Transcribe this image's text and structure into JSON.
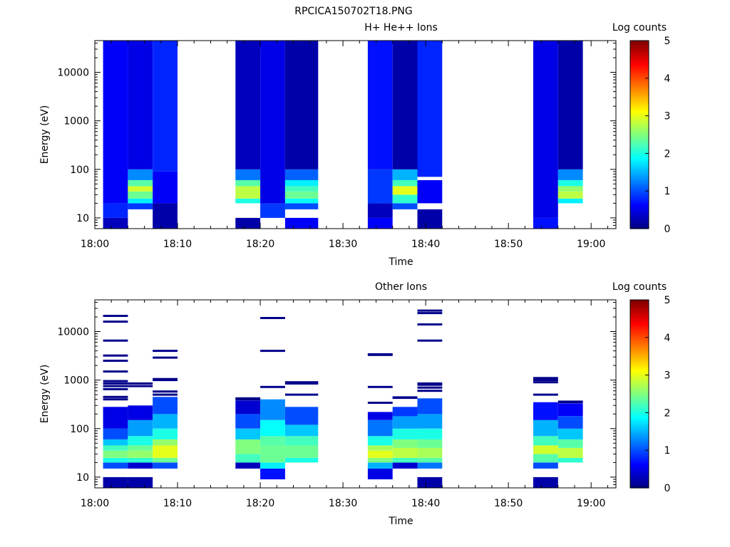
{
  "figure_title": "RPCICA150702T18.PNG",
  "chart_data": [
    {
      "type": "heatmap",
      "title": "H+ He++ Ions",
      "xlabel": "Time",
      "ylabel": "Energy (eV)",
      "xlim": [
        "18:00",
        "19:03"
      ],
      "ylim": [
        6,
        45000
      ],
      "yscale": "log",
      "x_ticks": [
        "18:00",
        "18:10",
        "18:20",
        "18:30",
        "18:40",
        "18:50",
        "19:00"
      ],
      "y_ticks": [
        "10",
        "100",
        "1000",
        "10000"
      ],
      "colorbar": {
        "label": "Log counts",
        "ticks": [
          "0",
          "1",
          "2",
          "3",
          "4",
          "5"
        ],
        "range": [
          0,
          5
        ]
      },
      "grid": false,
      "columns": [
        {
          "start": "18:01",
          "end": "18:04",
          "bands": [
            [
              6,
              10,
              0.3
            ],
            [
              10,
              20,
              0.8
            ],
            [
              20,
              45000,
              0.6
            ]
          ]
        },
        {
          "start": "18:04",
          "end": "18:07",
          "bands": [
            [
              15,
              20,
              0.9
            ],
            [
              20,
              25,
              1.8
            ],
            [
              25,
              35,
              2.4
            ],
            [
              35,
              45,
              2.9
            ],
            [
              45,
              60,
              2.3
            ],
            [
              60,
              100,
              1.3
            ],
            [
              100,
              45000,
              0.5
            ]
          ]
        },
        {
          "start": "18:07",
          "end": "18:10",
          "bands": [
            [
              6,
              20,
              0.2
            ],
            [
              20,
              90,
              0.6
            ],
            [
              90,
              45000,
              0.8
            ]
          ]
        },
        {
          "start": "18:17",
          "end": "18:20",
          "bands": [
            [
              6,
              10,
              0.2
            ],
            [
              20,
              25,
              2.0
            ],
            [
              25,
              45,
              2.8
            ],
            [
              45,
              60,
              2.3
            ],
            [
              60,
              100,
              1.2
            ],
            [
              100,
              45000,
              0.3
            ]
          ]
        },
        {
          "start": "18:20",
          "end": "18:23",
          "bands": [
            [
              10,
              20,
              0.9
            ],
            [
              20,
              45000,
              0.5
            ]
          ]
        },
        {
          "start": "18:23",
          "end": "18:27",
          "bands": [
            [
              6,
              10,
              0.6
            ],
            [
              15,
              20,
              1.0
            ],
            [
              20,
              25,
              1.9
            ],
            [
              25,
              35,
              2.4
            ],
            [
              35,
              45,
              2.2
            ],
            [
              45,
              60,
              1.8
            ],
            [
              60,
              100,
              1.1
            ],
            [
              100,
              45000,
              0.2
            ]
          ]
        },
        {
          "start": "18:33",
          "end": "18:36",
          "bands": [
            [
              6,
              10,
              0.6
            ],
            [
              10,
              20,
              0.3
            ],
            [
              20,
              100,
              0.9
            ],
            [
              100,
              45000,
              0.7
            ]
          ]
        },
        {
          "start": "18:36",
          "end": "18:39",
          "bands": [
            [
              15,
              20,
              1.0
            ],
            [
              20,
              30,
              2.1
            ],
            [
              30,
              45,
              3.0
            ],
            [
              45,
              60,
              2.2
            ],
            [
              60,
              100,
              1.5
            ],
            [
              100,
              45000,
              0.2
            ]
          ]
        },
        {
          "start": "18:39",
          "end": "18:42",
          "bands": [
            [
              6,
              15,
              0.2
            ],
            [
              20,
              60,
              0.6
            ],
            [
              70,
              45000,
              0.8
            ]
          ]
        },
        {
          "start": "18:53",
          "end": "18:56",
          "bands": [
            [
              6,
              10,
              0.7
            ],
            [
              10,
              45000,
              0.5
            ]
          ]
        },
        {
          "start": "18:56",
          "end": "18:59",
          "bands": [
            [
              20,
              25,
              1.8
            ],
            [
              25,
              35,
              2.8
            ],
            [
              35,
              45,
              2.6
            ],
            [
              45,
              60,
              2.0
            ],
            [
              60,
              100,
              1.3
            ],
            [
              100,
              45000,
              0.2
            ]
          ]
        }
      ]
    },
    {
      "type": "heatmap",
      "title": "Other Ions",
      "xlabel": "Time",
      "ylabel": "Energy (eV)",
      "xlim": [
        "18:00",
        "19:03"
      ],
      "ylim": [
        6,
        45000
      ],
      "yscale": "log",
      "x_ticks": [
        "18:00",
        "18:10",
        "18:20",
        "18:30",
        "18:40",
        "18:50",
        "19:00"
      ],
      "y_ticks": [
        "10",
        "100",
        "1000",
        "10000"
      ],
      "colorbar": {
        "label": "Log counts",
        "ticks": [
          "0",
          "1",
          "2",
          "3",
          "4",
          "5"
        ],
        "range": [
          0,
          5
        ]
      },
      "grid": false,
      "columns": [
        {
          "start": "18:01",
          "end": "18:04",
          "bands": [
            [
              6,
              10,
              0.2
            ],
            [
              15,
              20,
              1.0
            ],
            [
              20,
              25,
              2.0
            ],
            [
              25,
              35,
              2.5
            ],
            [
              35,
              45,
              2.2
            ],
            [
              45,
              60,
              1.6
            ],
            [
              60,
              100,
              1.0
            ],
            [
              100,
              280,
              0.5
            ]
          ]
        },
        {
          "start": "18:04",
          "end": "18:07",
          "bands": [
            [
              6,
              10,
              0.2
            ],
            [
              15,
              20,
              0.4
            ],
            [
              20,
              25,
              2.1
            ],
            [
              25,
              35,
              2.6
            ],
            [
              35,
              45,
              2.4
            ],
            [
              45,
              70,
              2.0
            ],
            [
              70,
              150,
              1.4
            ],
            [
              150,
              300,
              0.5
            ]
          ]
        },
        {
          "start": "18:07",
          "end": "18:10",
          "bands": [
            [
              15,
              20,
              1.0
            ],
            [
              20,
              25,
              2.4
            ],
            [
              25,
              45,
              3.0
            ],
            [
              45,
              60,
              2.6
            ],
            [
              60,
              100,
              2.0
            ],
            [
              100,
              200,
              1.5
            ],
            [
              200,
              450,
              1.0
            ]
          ]
        },
        {
          "start": "18:17",
          "end": "18:20",
          "bands": [
            [
              15,
              20,
              0.3
            ],
            [
              20,
              30,
              2.2
            ],
            [
              30,
              60,
              2.5
            ],
            [
              60,
              100,
              1.6
            ],
            [
              100,
              200,
              1.0
            ],
            [
              200,
              380,
              0.4
            ]
          ]
        },
        {
          "start": "18:20",
          "end": "18:23",
          "bands": [
            [
              9,
              15,
              0.7
            ],
            [
              15,
              20,
              1.8
            ],
            [
              20,
              45,
              2.4
            ],
            [
              45,
              70,
              2.3
            ],
            [
              70,
              150,
              1.9
            ],
            [
              150,
              400,
              1.3
            ]
          ]
        },
        {
          "start": "18:23",
          "end": "18:27",
          "bands": [
            [
              20,
              25,
              2.0
            ],
            [
              25,
              45,
              2.4
            ],
            [
              45,
              70,
              2.2
            ],
            [
              70,
              120,
              1.6
            ],
            [
              120,
              280,
              1.0
            ]
          ]
        },
        {
          "start": "18:33",
          "end": "18:36",
          "bands": [
            [
              9,
              15,
              0.5
            ],
            [
              15,
              20,
              1.5
            ],
            [
              20,
              25,
              2.5
            ],
            [
              25,
              35,
              3.0
            ],
            [
              35,
              45,
              2.7
            ],
            [
              45,
              70,
              2.0
            ],
            [
              70,
              150,
              1.2
            ],
            [
              150,
              220,
              0.5
            ]
          ]
        },
        {
          "start": "18:36",
          "end": "18:39",
          "bands": [
            [
              15,
              20,
              0.4
            ],
            [
              20,
              25,
              2.2
            ],
            [
              25,
              40,
              2.8
            ],
            [
              40,
              60,
              2.5
            ],
            [
              60,
              100,
              2.0
            ],
            [
              100,
              180,
              1.4
            ],
            [
              180,
              280,
              0.9
            ]
          ]
        },
        {
          "start": "18:39",
          "end": "18:42",
          "bands": [
            [
              6,
              10,
              0.2
            ],
            [
              15,
              20,
              1.2
            ],
            [
              20,
              25,
              2.3
            ],
            [
              25,
              40,
              2.7
            ],
            [
              40,
              60,
              2.4
            ],
            [
              60,
              100,
              2.0
            ],
            [
              100,
              200,
              1.4
            ],
            [
              200,
              420,
              1.0
            ]
          ]
        },
        {
          "start": "18:53",
          "end": "18:56",
          "bands": [
            [
              6,
              10,
              0.2
            ],
            [
              15,
              20,
              1.0
            ],
            [
              20,
              30,
              2.3
            ],
            [
              30,
              45,
              2.9
            ],
            [
              45,
              70,
              2.2
            ],
            [
              70,
              150,
              1.5
            ],
            [
              150,
              350,
              0.7
            ]
          ]
        },
        {
          "start": "18:56",
          "end": "18:59",
          "bands": [
            [
              20,
              25,
              2.1
            ],
            [
              25,
              40,
              2.8
            ],
            [
              40,
              60,
              2.3
            ],
            [
              60,
              100,
              1.6
            ],
            [
              100,
              180,
              1.0
            ],
            [
              180,
              330,
              0.6
            ]
          ]
        }
      ],
      "lines": [
        {
          "start": "18:01",
          "end": "18:04",
          "energies": [
            21000,
            16000,
            6500,
            3200,
            2500,
            1500,
            950,
            850,
            750,
            650,
            450,
            400
          ]
        },
        {
          "start": "18:04",
          "end": "18:07",
          "energies": [
            850,
            750
          ]
        },
        {
          "start": "18:07",
          "end": "18:10",
          "energies": [
            4000,
            2900,
            1050,
            1000,
            580,
            500
          ]
        },
        {
          "start": "18:17",
          "end": "18:20",
          "energies": [
            420,
            400
          ]
        },
        {
          "start": "18:20",
          "end": "18:23",
          "energies": [
            19000,
            4000,
            720
          ]
        },
        {
          "start": "18:23",
          "end": "18:27",
          "energies": [
            900,
            850,
            500
          ]
        },
        {
          "start": "18:33",
          "end": "18:36",
          "energies": [
            3400,
            3300,
            720,
            340
          ]
        },
        {
          "start": "18:36",
          "end": "18:39",
          "energies": [
            440,
            430
          ]
        },
        {
          "start": "18:39",
          "end": "18:42",
          "energies": [
            27000,
            24000,
            14000,
            6500,
            850,
            800,
            700,
            600
          ]
        },
        {
          "start": "18:53",
          "end": "18:56",
          "energies": [
            1100,
            1000,
            900,
            500
          ]
        },
        {
          "start": "18:56",
          "end": "18:59",
          "energies": [
            360,
            350
          ]
        }
      ]
    }
  ]
}
